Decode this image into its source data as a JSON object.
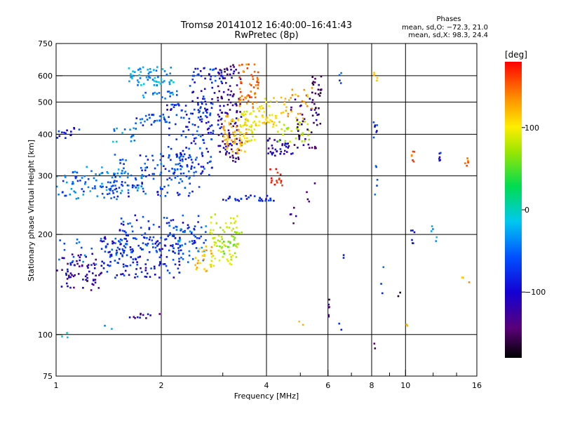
{
  "chart_data": {
    "type": "scatter",
    "title": "Tromsø 20141012 16:40:00–16:41:43",
    "subtitle": "RwPretec (8p)",
    "xlabel": "Frequency [MHz]",
    "ylabel": "Stationary phase Virtual Height [km]",
    "x_scale": "log",
    "y_scale": "log",
    "xlim": [
      1,
      16
    ],
    "ylim": [
      75,
      750
    ],
    "x_ticks": [
      1,
      2,
      4,
      6,
      8,
      10,
      16
    ],
    "x_tick_labels": [
      "1",
      "2",
      "4",
      "6",
      "8",
      "10",
      "16"
    ],
    "x_minor_ticks": [
      3,
      5,
      7,
      9,
      12,
      14
    ],
    "y_ticks": [
      75,
      100,
      200,
      300,
      400,
      500,
      600,
      750
    ],
    "y_tick_labels": [
      "75",
      "100",
      "200",
      "300",
      "400",
      "500",
      "600",
      "750"
    ],
    "grid": true,
    "info": {
      "heading": "Phases",
      "line1": "mean, sd,O: −72.3, 21.0",
      "line2": "mean, sd,X: 98.3, 24.4"
    },
    "colorbar": {
      "label": "[deg]",
      "range": [
        -180,
        180
      ],
      "tick_values": [
        100,
        0,
        -100
      ],
      "tick_labels": [
        "100",
        "0",
        "−100"
      ]
    },
    "traces": [
      {
        "x": [
          1.0,
          1.35
        ],
        "y": [
          135,
          175
        ],
        "phase": -130,
        "n": 70
      },
      {
        "x": [
          1.0,
          1.6
        ],
        "y": [
          160,
          195
        ],
        "phase": -95,
        "n": 50
      },
      {
        "x": [
          1.35,
          2.3
        ],
        "y": [
          148,
          200
        ],
        "phase": -110,
        "n": 130
      },
      {
        "x": [
          1.5,
          2.6
        ],
        "y": [
          175,
          230
        ],
        "phase": -105,
        "n": 90
      },
      {
        "x": [
          2.2,
          2.7
        ],
        "y": [
          165,
          215
        ],
        "phase": -90,
        "n": 40
      },
      {
        "x": [
          2.5,
          2.8
        ],
        "y": [
          155,
          185
        ],
        "phase": 120,
        "n": 25
      },
      {
        "x": [
          2.75,
          3.3
        ],
        "y": [
          160,
          230
        ],
        "phase": 60,
        "n": 60
      },
      {
        "x": [
          2.85,
          3.4
        ],
        "y": [
          175,
          210
        ],
        "phase": 20,
        "n": 30
      },
      {
        "x": [
          1.0,
          1.5
        ],
        "y": [
          255,
          310
        ],
        "phase": -90,
        "n": 60
      },
      {
        "x": [
          1.2,
          1.8
        ],
        "y": [
          270,
          320
        ],
        "phase": -80,
        "n": 45
      },
      {
        "x": [
          1.45,
          2.6
        ],
        "y": [
          260,
          350
        ],
        "phase": -100,
        "n": 130
      },
      {
        "x": [
          2.05,
          2.8
        ],
        "y": [
          300,
          500
        ],
        "phase": -105,
        "n": 120
      },
      {
        "x": [
          2.4,
          3.0
        ],
        "y": [
          400,
          640
        ],
        "phase": -110,
        "n": 80
      },
      {
        "x": [
          2.9,
          3.4
        ],
        "y": [
          330,
          650
        ],
        "phase": -135,
        "n": 120
      },
      {
        "x": [
          3.0,
          3.55
        ],
        "y": [
          350,
          460
        ],
        "phase": 115,
        "n": 70
      },
      {
        "x": [
          3.3,
          3.8
        ],
        "y": [
          480,
          650
        ],
        "phase": 145,
        "n": 55
      },
      {
        "x": [
          3.35,
          3.75
        ],
        "y": [
          380,
          470
        ],
        "phase": 70,
        "n": 45
      },
      {
        "x": [
          3.7,
          4.3
        ],
        "y": [
          420,
          520
        ],
        "phase": 95,
        "n": 40
      },
      {
        "x": [
          4.0,
          4.8
        ],
        "y": [
          345,
          390
        ],
        "phase": -120,
        "n": 35
      },
      {
        "x": [
          4.3,
          5.3
        ],
        "y": [
          380,
          440
        ],
        "phase": 40,
        "n": 35
      },
      {
        "x": [
          4.7,
          5.6
        ],
        "y": [
          360,
          550
        ],
        "phase": -140,
        "n": 40
      },
      {
        "x": [
          4.4,
          5.4
        ],
        "y": [
          440,
          560
        ],
        "phase": 120,
        "n": 30
      },
      {
        "x": [
          5.4,
          5.75
        ],
        "y": [
          420,
          600
        ],
        "phase": -150,
        "n": 25
      },
      {
        "x": [
          1.0,
          1.2
        ],
        "y": [
          390,
          420
        ],
        "phase": -110,
        "n": 15
      },
      {
        "x": [
          1.6,
          2.2
        ],
        "y": [
          560,
          640
        ],
        "phase": -70,
        "n": 60
      },
      {
        "x": [
          1.65,
          2.05
        ],
        "y": [
          425,
          460
        ],
        "phase": -95,
        "n": 25
      },
      {
        "x": [
          1.75,
          2.3
        ],
        "y": [
          510,
          540
        ],
        "phase": -80,
        "n": 20
      },
      {
        "x": [
          1.45,
          1.7
        ],
        "y": [
          380,
          420
        ],
        "phase": -75,
        "n": 15
      },
      {
        "x": [
          3.0,
          4.2
        ],
        "y": [
          252,
          262
        ],
        "phase": -110,
        "n": 30
      },
      {
        "x": [
          4.1,
          4.45
        ],
        "y": [
          280,
          315
        ],
        "phase": 170,
        "n": 15
      },
      {
        "x": [
          1.55,
          2.0
        ],
        "y": [
          112,
          116
        ],
        "phase": -130,
        "n": 12
      },
      {
        "x": [
          6.0,
          6.05
        ],
        "y": [
          100,
          140
        ],
        "phase": -150,
        "n": 6
      },
      {
        "x": [
          8.1,
          8.3
        ],
        "y": [
          250,
          450
        ],
        "phase": -100,
        "n": 12
      },
      {
        "x": [
          10.4,
          10.6
        ],
        "y": [
          330,
          360
        ],
        "phase": 150,
        "n": 6
      },
      {
        "x": [
          12.4,
          12.6
        ],
        "y": [
          330,
          360
        ],
        "phase": -110,
        "n": 6
      },
      {
        "x": [
          14.8,
          15.2
        ],
        "y": [
          320,
          340
        ],
        "phase": 150,
        "n": 5
      },
      {
        "x": [
          6.4,
          6.6
        ],
        "y": [
          570,
          620
        ],
        "phase": -90,
        "n": 4
      },
      {
        "x": [
          7.9,
          8.3
        ],
        "y": [
          580,
          620
        ],
        "phase": 120,
        "n": 4
      },
      {
        "x": [
          10.3,
          10.6
        ],
        "y": [
          185,
          215
        ],
        "phase": -110,
        "n": 6
      },
      {
        "x": [
          11.8,
          12.3
        ],
        "y": [
          190,
          220
        ],
        "phase": -80,
        "n": 5
      },
      {
        "x": [
          4.6,
          4.9
        ],
        "y": [
          210,
          250
        ],
        "phase": -140,
        "n": 5
      },
      {
        "x": [
          5.2,
          5.5
        ],
        "y": [
          250,
          290
        ],
        "phase": -140,
        "n": 4
      },
      {
        "x": [
          8.0,
          8.2
        ],
        "y": [
          85,
          95
        ],
        "phase": -140,
        "n": 2
      },
      {
        "x": [
          6.45,
          6.55
        ],
        "y": [
          103,
          108
        ],
        "phase": -120,
        "n": 2
      },
      {
        "x": [
          14.5,
          15.5
        ],
        "y": [
          140,
          150
        ],
        "phase": 120,
        "n": 3
      },
      {
        "x": [
          9.5,
          9.7
        ],
        "y": [
          130,
          135
        ],
        "phase": -160,
        "n": 2
      },
      {
        "x": [
          1.0,
          1.1
        ],
        "y": [
          97,
          103
        ],
        "phase": -60,
        "n": 3
      },
      {
        "x": [
          1.35,
          1.45
        ],
        "y": [
          104,
          108
        ],
        "phase": -70,
        "n": 2
      },
      {
        "x": [
          4.9,
          5.1
        ],
        "y": [
          106,
          110
        ],
        "phase": 110,
        "n": 2
      },
      {
        "x": [
          9.8,
          10.2
        ],
        "y": [
          106,
          110
        ],
        "phase": 120,
        "n": 2
      },
      {
        "x": [
          8.5,
          8.8
        ],
        "y": [
          125,
          160
        ],
        "phase": -90,
        "n": 3
      },
      {
        "x": [
          6.6,
          6.8
        ],
        "y": [
          170,
          175
        ],
        "phase": -110,
        "n": 2
      }
    ]
  }
}
